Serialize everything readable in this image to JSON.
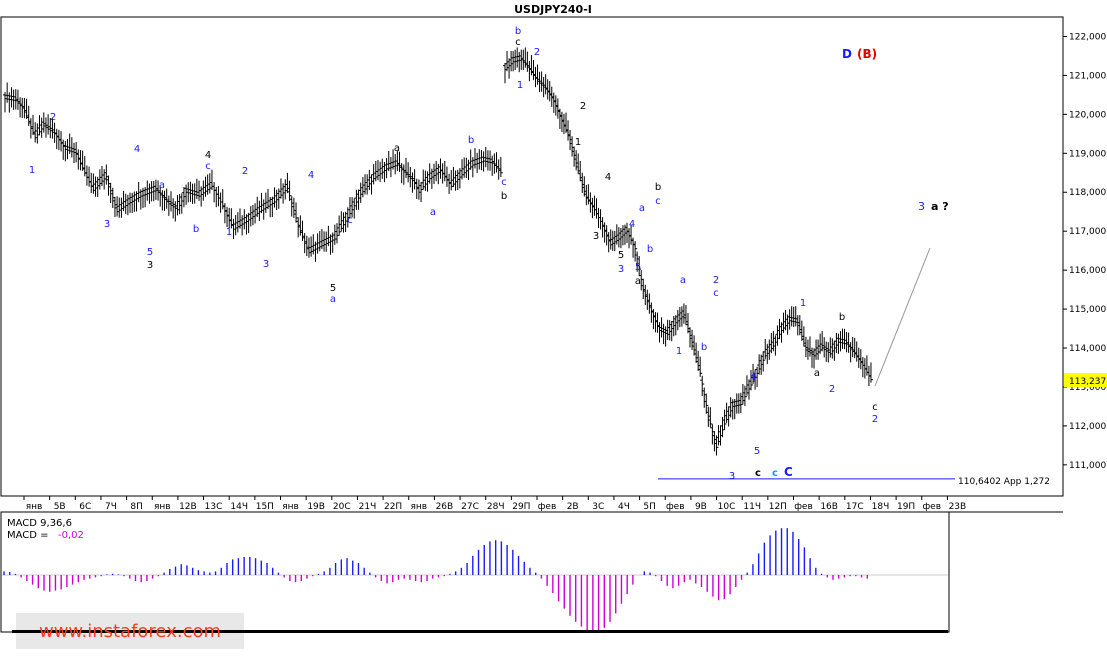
{
  "chart_data": {
    "type": "ohlc",
    "title": "USDJPY240-I",
    "price_axis": {
      "ticks": [
        "122,000",
        "121,000",
        "120,000",
        "119,000",
        "118,000",
        "117,000",
        "116,000",
        "115,000",
        "114,000",
        "113,000",
        "112,000",
        "111,000"
      ],
      "tick_values": [
        122,
        121,
        120,
        119,
        118,
        117,
        116,
        115,
        114,
        113,
        112,
        111
      ],
      "range": [
        110.2,
        122.5
      ],
      "current_price_label": "113,237",
      "current_price": 113.237,
      "current_price_color": "#ffff00"
    },
    "time_axis": {
      "ticks": [
        "янв",
        "5В",
        "6С",
        "7Ч",
        "8П",
        "янв",
        "12В",
        "13С",
        "14Ч",
        "15П",
        "янв",
        "19В",
        "20С",
        "21Ч",
        "22П",
        "янв",
        "26В",
        "27С",
        "28Ч",
        "29П",
        "фев",
        "2В",
        "3С",
        "4Ч",
        "5П",
        "фев",
        "9В",
        "10С",
        "11Ч",
        "12П",
        "фев",
        "16В",
        "17С",
        "18Ч",
        "19П",
        "фев",
        "23В"
      ],
      "bar_count": 232
    },
    "price_path": [
      [
        0,
        120.45
      ],
      [
        5,
        120.4
      ],
      [
        9,
        120.15
      ],
      [
        14,
        119.45
      ],
      [
        18,
        119.75
      ],
      [
        23,
        119.55
      ],
      [
        28,
        119.15
      ],
      [
        33,
        119.05
      ],
      [
        37,
        118.55
      ],
      [
        41,
        118.1
      ],
      [
        47,
        118.45
      ],
      [
        52,
        117.55
      ],
      [
        57,
        117.75
      ],
      [
        63,
        117.95
      ],
      [
        70,
        118.1
      ],
      [
        76,
        117.75
      ],
      [
        80,
        117.6
      ],
      [
        84,
        118.05
      ],
      [
        90,
        117.95
      ],
      [
        96,
        118.2
      ],
      [
        101,
        117.7
      ],
      [
        106,
        117.1
      ],
      [
        112,
        117.3
      ],
      [
        118,
        117.55
      ],
      [
        125,
        117.8
      ],
      [
        131,
        118.15
      ],
      [
        136,
        117.2
      ],
      [
        141,
        116.5
      ],
      [
        146,
        116.65
      ],
      [
        153,
        116.85
      ],
      [
        159,
        117.4
      ],
      [
        165,
        118.0
      ],
      [
        171,
        118.4
      ],
      [
        177,
        118.65
      ],
      [
        182,
        118.75
      ],
      [
        187,
        118.45
      ],
      [
        190,
        118.3
      ],
      [
        192,
        118.05
      ],
      [
        197,
        118.4
      ],
      [
        202,
        118.6
      ],
      [
        207,
        118.2
      ],
      [
        212,
        118.5
      ],
      [
        217,
        118.75
      ],
      [
        222,
        118.85
      ],
      [
        226,
        118.8
      ],
      [
        230,
        118.55
      ]
    ],
    "price_path_note": "",
    "secondary_path": [
      [
        0,
        121.2
      ],
      [
        4,
        121.4
      ],
      [
        8,
        121.45
      ],
      [
        12,
        121.2
      ],
      [
        16,
        120.9
      ],
      [
        20,
        120.7
      ],
      [
        24,
        120.4
      ],
      [
        28,
        119.9
      ],
      [
        32,
        119.4
      ],
      [
        36,
        118.6
      ],
      [
        40,
        117.9
      ],
      [
        44,
        117.6
      ],
      [
        48,
        117.2
      ],
      [
        52,
        116.7
      ],
      [
        56,
        116.85
      ],
      [
        60,
        117.05
      ],
      [
        64,
        116.6
      ],
      [
        68,
        115.55
      ],
      [
        72,
        115.0
      ],
      [
        76,
        114.5
      ],
      [
        80,
        114.4
      ],
      [
        84,
        114.7
      ],
      [
        88,
        114.9
      ],
      [
        92,
        114.2
      ],
      [
        96,
        113.4
      ],
      [
        100,
        112.3
      ],
      [
        104,
        111.5
      ],
      [
        108,
        112.1
      ],
      [
        112,
        112.55
      ],
      [
        116,
        112.6
      ],
      [
        120,
        113.0
      ],
      [
        124,
        113.4
      ],
      [
        128,
        113.85
      ],
      [
        132,
        114.1
      ],
      [
        136,
        114.5
      ],
      [
        140,
        114.75
      ],
      [
        144,
        114.7
      ],
      [
        148,
        114.0
      ],
      [
        152,
        113.85
      ],
      [
        156,
        114.05
      ],
      [
        160,
        113.9
      ],
      [
        164,
        114.2
      ],
      [
        168,
        114.15
      ],
      [
        172,
        113.9
      ],
      [
        176,
        113.6
      ],
      [
        180,
        113.237
      ]
    ],
    "wave_labels": [
      {
        "text": "D",
        "color": "#1a1aff"
      },
      {
        "text": "(B)",
        "color": "#e00000"
      },
      {
        "text": "3",
        "color": "#1a1aff"
      },
      {
        "text": "a ?",
        "color": "#000000"
      },
      {
        "text": "C",
        "color": "#1a1aff"
      },
      {
        "text": "c",
        "color": "#00a0ff"
      },
      {
        "text": "c",
        "color": "#000000"
      }
    ],
    "support_line": {
      "label": "110,6402 App 1,272",
      "value": 110.6402,
      "color": "#1a1aff"
    },
    "indicator": {
      "name": "MACD",
      "label": "MACD 9,36,6",
      "value_label": "MACD = ",
      "value": "-0,02",
      "value_color": "#d000d0",
      "positive_color": "#1a1aff",
      "negative_color": "#d000d0",
      "hist": [
        0.3,
        0.25,
        0.1,
        -0.2,
        -0.5,
        -0.8,
        -1.1,
        -1.3,
        -1.4,
        -1.3,
        -1.2,
        -1.0,
        -0.8,
        -0.6,
        -0.4,
        -0.3,
        -0.2,
        -0.1,
        0.05,
        0.1,
        0.05,
        -0.1,
        -0.3,
        -0.5,
        -0.6,
        -0.5,
        -0.3,
        -0.1,
        0.2,
        0.5,
        0.7,
        0.9,
        0.8,
        0.6,
        0.4,
        0.3,
        0.2,
        0.3,
        0.6,
        1.0,
        1.3,
        1.4,
        1.5,
        1.5,
        1.4,
        1.2,
        1.0,
        0.6,
        0.2,
        -0.2,
        -0.5,
        -0.6,
        -0.5,
        -0.3,
        -0.1,
        0.1,
        0.3,
        0.6,
        1.0,
        1.3,
        1.4,
        1.2,
        1.0,
        0.6,
        0.2,
        -0.2,
        -0.5,
        -0.7,
        -0.6,
        -0.4,
        -0.3,
        -0.4,
        -0.5,
        -0.6,
        -0.5,
        -0.3,
        -0.2,
        -0.1,
        0.1,
        0.3,
        0.6,
        1.0,
        1.6,
        2.1,
        2.5,
        2.8,
        2.9,
        2.8,
        2.5,
        2.1,
        1.6,
        1.1,
        0.6,
        0.2,
        -0.3,
        -0.9,
        -1.5,
        -2.2,
        -2.8,
        -3.4,
        -3.9,
        -4.3,
        -4.6,
        -4.8,
        -4.7,
        -4.4,
        -3.9,
        -3.2,
        -2.4,
        -1.6,
        -0.8,
        0.0,
        0.3,
        0.2,
        -0.1,
        -0.5,
        -0.9,
        -1.1,
        -0.9,
        -0.6,
        -0.4,
        -0.7,
        -1.0,
        -1.4,
        -1.8,
        -2.1,
        -2.0,
        -1.6,
        -1.0,
        -0.4,
        0.2,
        0.9,
        1.8,
        2.7,
        3.3,
        3.7,
        3.9,
        3.9,
        3.6,
        3.0,
        2.3,
        1.4,
        0.6,
        0.1,
        -0.2,
        -0.4,
        -0.3,
        -0.2,
        -0.1,
        -0.1,
        -0.2,
        -0.3
      ],
      "watermark": "www.instaforex.com"
    }
  }
}
